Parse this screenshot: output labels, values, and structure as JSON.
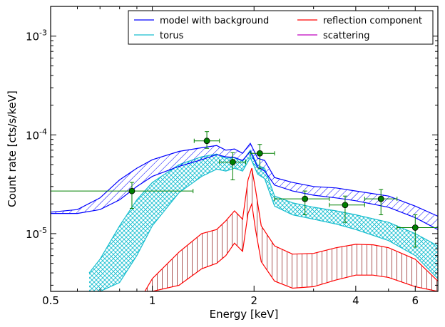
{
  "chart_data": {
    "type": "line",
    "xlabel": "Energy [keV]",
    "ylabel": "Count rate [cts/s/keV]",
    "xscale": "log",
    "yscale": "log",
    "xlim": [
      0.5,
      7.0
    ],
    "ylim": [
      2.6e-06,
      0.002
    ],
    "x_ticks": [
      {
        "value": 0.5,
        "label": "0.5"
      },
      {
        "value": 1,
        "label": "1"
      },
      {
        "value": 2,
        "label": "2"
      },
      {
        "value": 4,
        "label": "4"
      },
      {
        "value": 6,
        "label": "6"
      }
    ],
    "y_ticks": [
      {
        "value": 1e-05,
        "base": "10",
        "exp": "-5"
      },
      {
        "value": 0.0001,
        "base": "10",
        "exp": "-4"
      },
      {
        "value": 0.001,
        "base": "10",
        "exp": "-3"
      }
    ],
    "legend": {
      "position": "top-right",
      "columns": 2,
      "entries": [
        {
          "label": "model with background",
          "color": "#0000ff"
        },
        {
          "label": "torus",
          "color": "#17becf"
        },
        {
          "label": "reflection component",
          "color": "#ff0000"
        },
        {
          "label": "scattering",
          "color": "#bf00bf"
        }
      ]
    },
    "series": [
      {
        "name": "model with background",
        "color": "#0000ff",
        "band": true,
        "x": [
          0.5,
          0.6,
          0.7,
          0.8,
          0.9,
          1.0,
          1.2,
          1.4,
          1.55,
          1.65,
          1.75,
          1.85,
          1.95,
          2.05,
          2.15,
          2.3,
          2.6,
          3.0,
          3.5,
          4.0,
          5.0,
          6.0,
          7.0
        ],
        "upper": [
          1.65e-05,
          1.75e-05,
          2.3e-05,
          3.5e-05,
          4.6e-05,
          5.6e-05,
          6.8e-05,
          7.4e-05,
          7.8e-05,
          7e-05,
          7.2e-05,
          6.5e-05,
          8.2e-05,
          5.8e-05,
          5.5e-05,
          3.7e-05,
          3.3e-05,
          3e-05,
          2.9e-05,
          2.7e-05,
          2.4e-05,
          1.9e-05,
          1.5e-05
        ],
        "lower": [
          1.6e-05,
          1.6e-05,
          1.75e-05,
          2.2e-05,
          3e-05,
          3.8e-05,
          4.8e-05,
          5.6e-05,
          6.3e-05,
          6e-05,
          5.9e-05,
          5.5e-05,
          6.8e-05,
          4.7e-05,
          4.3e-05,
          3.1e-05,
          2.7e-05,
          2.45e-05,
          2.3e-05,
          2.15e-05,
          1.85e-05,
          1.45e-05,
          1.1e-05
        ]
      },
      {
        "name": "torus",
        "color": "#17becf",
        "band": true,
        "x": [
          0.65,
          0.7,
          0.8,
          0.9,
          1.0,
          1.2,
          1.4,
          1.55,
          1.65,
          1.75,
          1.85,
          1.95,
          2.05,
          2.15,
          2.3,
          2.6,
          3.0,
          3.5,
          4.0,
          5.0,
          6.0,
          7.0
        ],
        "upper": [
          4e-06,
          5.5e-06,
          1.2e-05,
          2.2e-05,
          3.3e-05,
          5e-05,
          6e-05,
          6.4e-05,
          5.8e-05,
          5.9e-05,
          5.4e-05,
          7e-05,
          4.9e-05,
          4.6e-05,
          2.4e-05,
          2.05e-05,
          1.85e-05,
          1.7e-05,
          1.55e-05,
          1.3e-05,
          1e-05,
          7.5e-06
        ],
        "lower": [
          2.6e-06,
          2.6e-06,
          3.2e-06,
          6e-06,
          1.2e-05,
          2.6e-05,
          3.8e-05,
          4.5e-05,
          4.3e-05,
          4.6e-05,
          4.3e-05,
          5.9e-05,
          4e-05,
          3.6e-05,
          1.9e-05,
          1.55e-05,
          1.4e-05,
          1.25e-05,
          1.1e-05,
          8.5e-06,
          6e-06,
          3.5e-06
        ]
      },
      {
        "name": "reflection component",
        "color": "#ff0000",
        "band": true,
        "x": [
          0.95,
          1.0,
          1.2,
          1.4,
          1.55,
          1.65,
          1.75,
          1.85,
          1.92,
          1.97,
          2.02,
          2.1,
          2.3,
          2.6,
          3.0,
          3.5,
          4.0,
          4.5,
          5.0,
          6.0,
          7.0
        ],
        "upper": [
          2.6e-06,
          3.5e-06,
          6.5e-06,
          1e-05,
          1.1e-05,
          1.35e-05,
          1.7e-05,
          1.4e-05,
          3.5e-05,
          4.6e-05,
          2.8e-05,
          1.2e-05,
          7.5e-06,
          6.2e-06,
          6.3e-06,
          7.2e-06,
          7.8e-06,
          7.7e-06,
          7.2e-06,
          5.5e-06,
          3.3e-06
        ],
        "lower": [
          2.6e-06,
          2.6e-06,
          3e-06,
          4.4e-06,
          5e-06,
          6e-06,
          8e-06,
          6.6e-06,
          1.6e-05,
          2e-05,
          1.1e-05,
          5.2e-06,
          3.3e-06,
          2.8e-06,
          2.9e-06,
          3.4e-06,
          3.8e-06,
          3.8e-06,
          3.6e-06,
          2.9e-06,
          2.6e-06
        ]
      },
      {
        "name": "scattering",
        "color": "#bf00bf",
        "band": false,
        "x": [],
        "values": []
      }
    ],
    "data_points": {
      "color": "#008000",
      "points": [
        {
          "x": 0.87,
          "y": 2.7e-05,
          "xlo": 0.5,
          "xhi": 1.32,
          "ylo": 1.8e-05,
          "yhi": 3.3e-05
        },
        {
          "x": 1.45,
          "y": 8.7e-05,
          "xlo": 1.33,
          "xhi": 1.58,
          "ylo": 7.3e-05,
          "yhi": 0.000108
        },
        {
          "x": 1.73,
          "y": 5.3e-05,
          "xlo": 1.58,
          "xhi": 1.89,
          "ylo": 3.5e-05,
          "yhi": 6.6e-05
        },
        {
          "x": 2.08,
          "y": 6.5e-05,
          "xlo": 1.95,
          "xhi": 2.3,
          "ylo": 4.6e-05,
          "yhi": 8e-05
        },
        {
          "x": 2.83,
          "y": 2.25e-05,
          "xlo": 2.3,
          "xhi": 3.34,
          "ylo": 1.55e-05,
          "yhi": 2.7e-05
        },
        {
          "x": 3.72,
          "y": 1.95e-05,
          "xlo": 3.34,
          "xhi": 4.25,
          "ylo": 1.3e-05,
          "yhi": 2.4e-05
        },
        {
          "x": 4.75,
          "y": 2.25e-05,
          "xlo": 4.25,
          "xhi": 5.3,
          "ylo": 1.55e-05,
          "yhi": 2.8e-05
        },
        {
          "x": 6.0,
          "y": 1.15e-05,
          "xlo": 5.3,
          "xhi": 7.0,
          "ylo": 7.3e-06,
          "yhi": 1.55e-05
        }
      ]
    }
  }
}
